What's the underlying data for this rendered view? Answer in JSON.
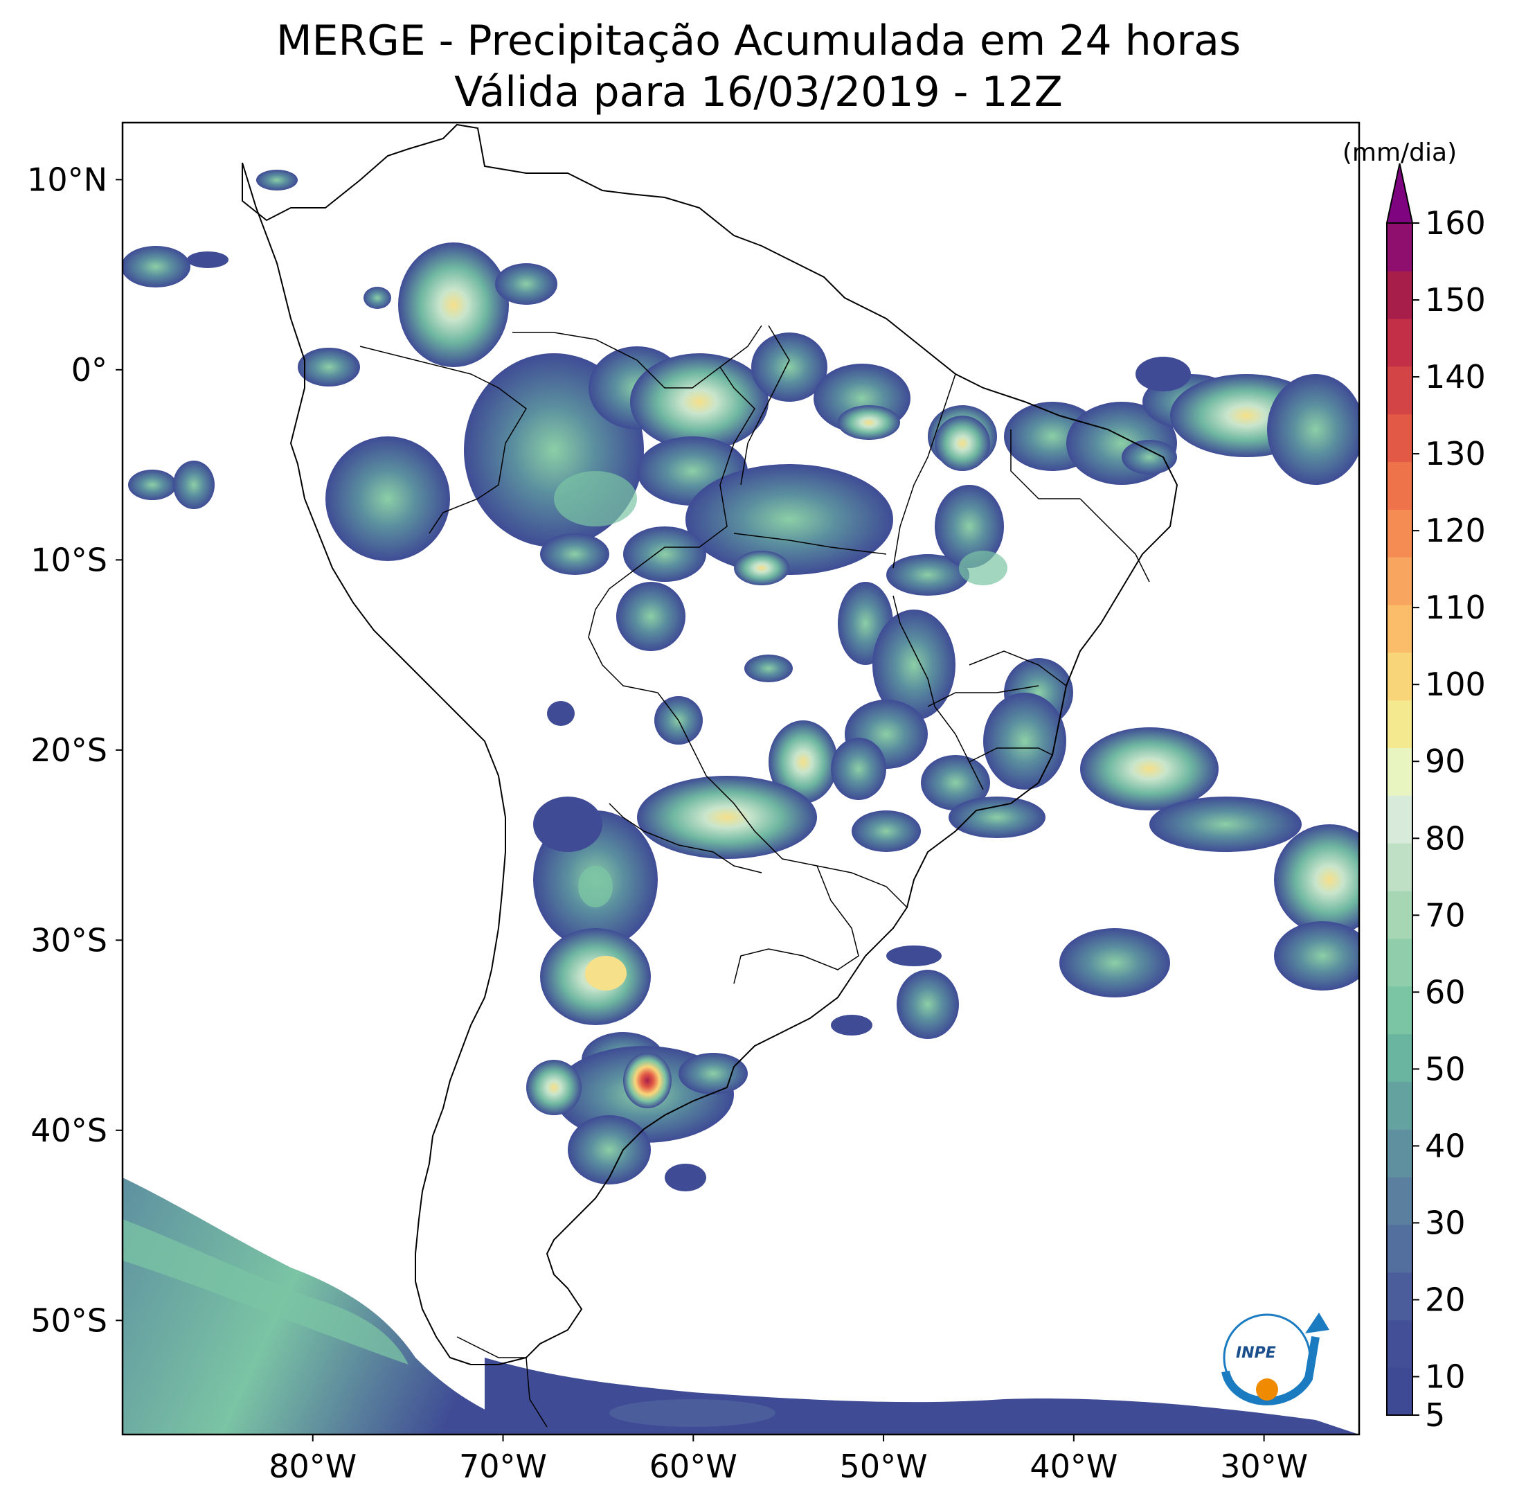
{
  "title": {
    "line1": "MERGE - Precipitação Acumulada em 24 horas",
    "line2": "Válida para 16/03/2019 - 12Z"
  },
  "map": {
    "lon_range": [
      -90,
      -25
    ],
    "lat_range": [
      -56,
      13
    ],
    "lon_ticks": [
      {
        "value": -80,
        "label": "80°W"
      },
      {
        "value": -70,
        "label": "70°W"
      },
      {
        "value": -60,
        "label": "60°W"
      },
      {
        "value": -50,
        "label": "50°W"
      },
      {
        "value": -40,
        "label": "40°W"
      },
      {
        "value": -30,
        "label": "30°W"
      }
    ],
    "lat_ticks": [
      {
        "value": 10,
        "label": "10°N"
      },
      {
        "value": 0,
        "label": "0°"
      },
      {
        "value": -10,
        "label": "10°S"
      },
      {
        "value": -20,
        "label": "20°S"
      },
      {
        "value": -30,
        "label": "30°S"
      },
      {
        "value": -40,
        "label": "40°S"
      },
      {
        "value": -50,
        "label": "50°S"
      }
    ]
  },
  "colorbar": {
    "unit": "(mm/dia)",
    "min": 5,
    "max": 160,
    "extend": "max",
    "tick_labels": [
      "5",
      "10",
      "20",
      "30",
      "40",
      "50",
      "60",
      "70",
      "80",
      "90",
      "100",
      "110",
      "120",
      "130",
      "140",
      "150",
      "160"
    ],
    "colors": [
      "#3e4a94",
      "#434f97",
      "#4b5d9b",
      "#536f9e",
      "#5a7f9f",
      "#5e90a0",
      "#64a2a0",
      "#6ab5a0",
      "#7bc4a4",
      "#90cdaa",
      "#a7d6b5",
      "#c0e0c6",
      "#d8ebdb",
      "#e9f5c0",
      "#f4e98f",
      "#f9d57a",
      "#fbbd6a",
      "#f8a55f",
      "#f48c53",
      "#ee734a",
      "#e25a46",
      "#d34446",
      "#c22f46",
      "#a81e4a",
      "#8e0f6e"
    ],
    "extend_color": "#7f0580"
  },
  "logo": {
    "text": "INPE"
  }
}
